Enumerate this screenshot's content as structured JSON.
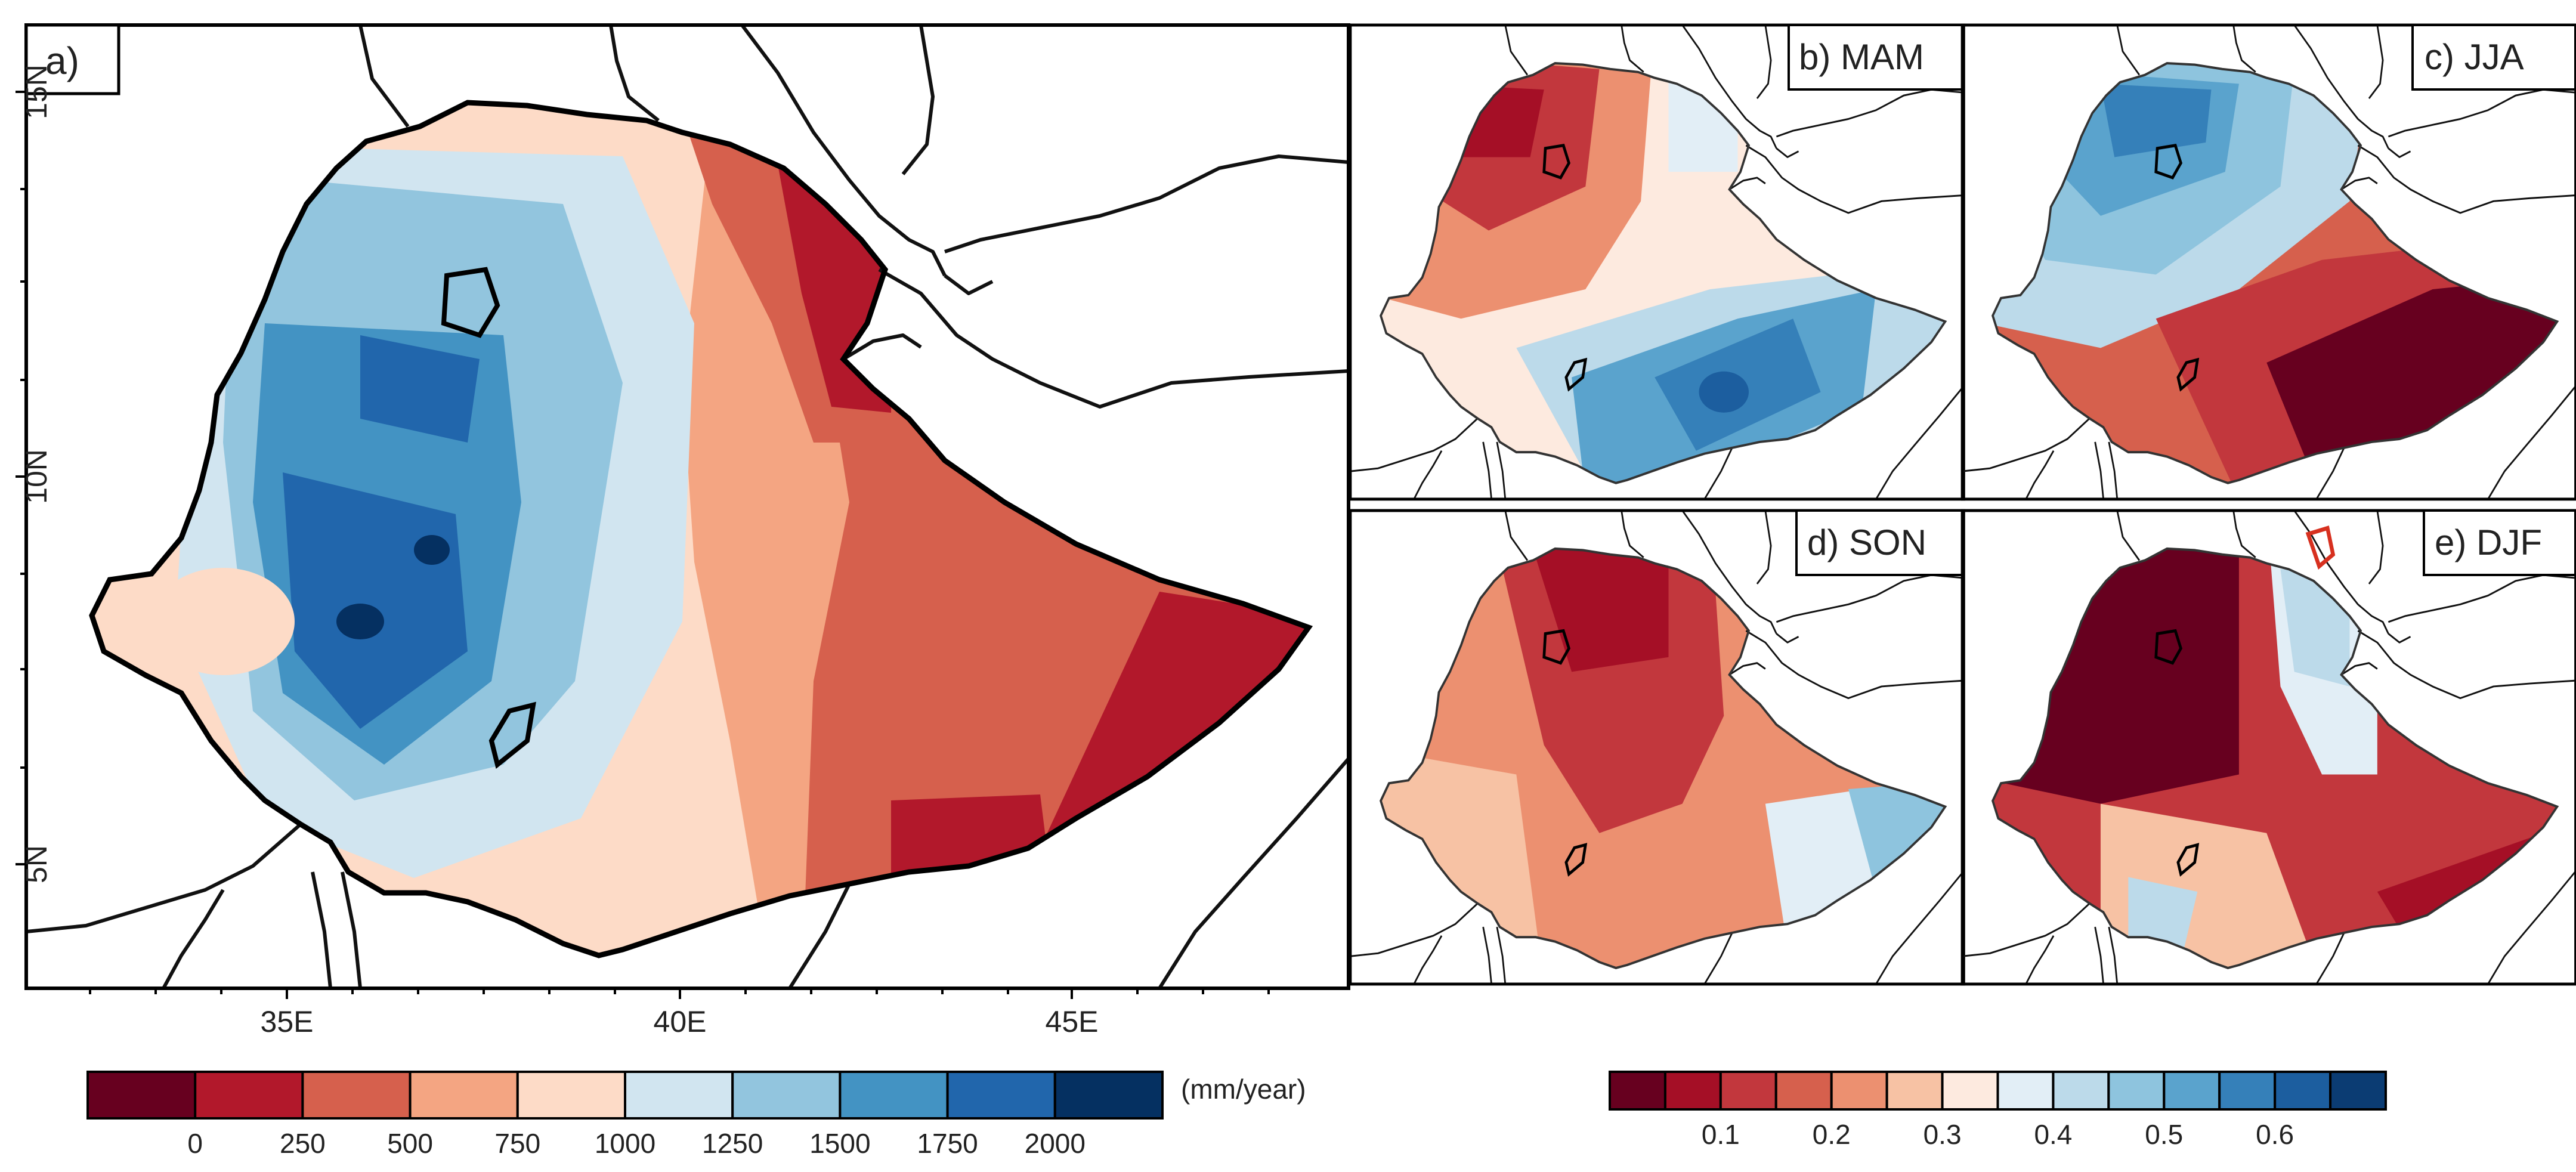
{
  "panels": {
    "a": {
      "label": "a)",
      "lat_ticks": [
        "15N",
        "10N",
        "5N"
      ],
      "lon_ticks": [
        "35E",
        "40E",
        "45E"
      ]
    },
    "b": {
      "label": "b) MAM"
    },
    "c": {
      "label": "c) JJA"
    },
    "d": {
      "label": "d) SON"
    },
    "e": {
      "label": "e) DJF"
    }
  },
  "legend_left": {
    "colors": [
      "#67001f",
      "#b2182b",
      "#d6604d",
      "#f4a582",
      "#fddbc7",
      "#d1e5f0",
      "#92c5de",
      "#4393c3",
      "#2166ac",
      "#053061"
    ],
    "ticks": [
      "0",
      "250",
      "500",
      "750",
      "1000",
      "1250",
      "1500",
      "1750",
      "2000"
    ],
    "unit": "(mm/year)"
  },
  "legend_right": {
    "colors": [
      "#67001f",
      "#a50f26",
      "#c2373d",
      "#d6604d",
      "#ec9070",
      "#f7c2a4",
      "#fdeadf",
      "#e2eef6",
      "#bcdaea",
      "#8ec4de",
      "#5aa3cd",
      "#3580b9",
      "#1c5e9f",
      "#0b3c73"
    ],
    "ticks": [
      "0.1",
      "0.2",
      "0.3",
      "0.4",
      "0.5",
      "0.6"
    ]
  },
  "palette": {
    "deep_red": "#67001f",
    "red": "#b2182b",
    "mid_red": "#d6604d",
    "salmon": "#f4a582",
    "pale_red": "#fddbc7",
    "pale_blue": "#d1e5f0",
    "light_blue": "#92c5de",
    "blue": "#4393c3",
    "mid_blue": "#2166ac",
    "deep_blue": "#053061"
  }
}
